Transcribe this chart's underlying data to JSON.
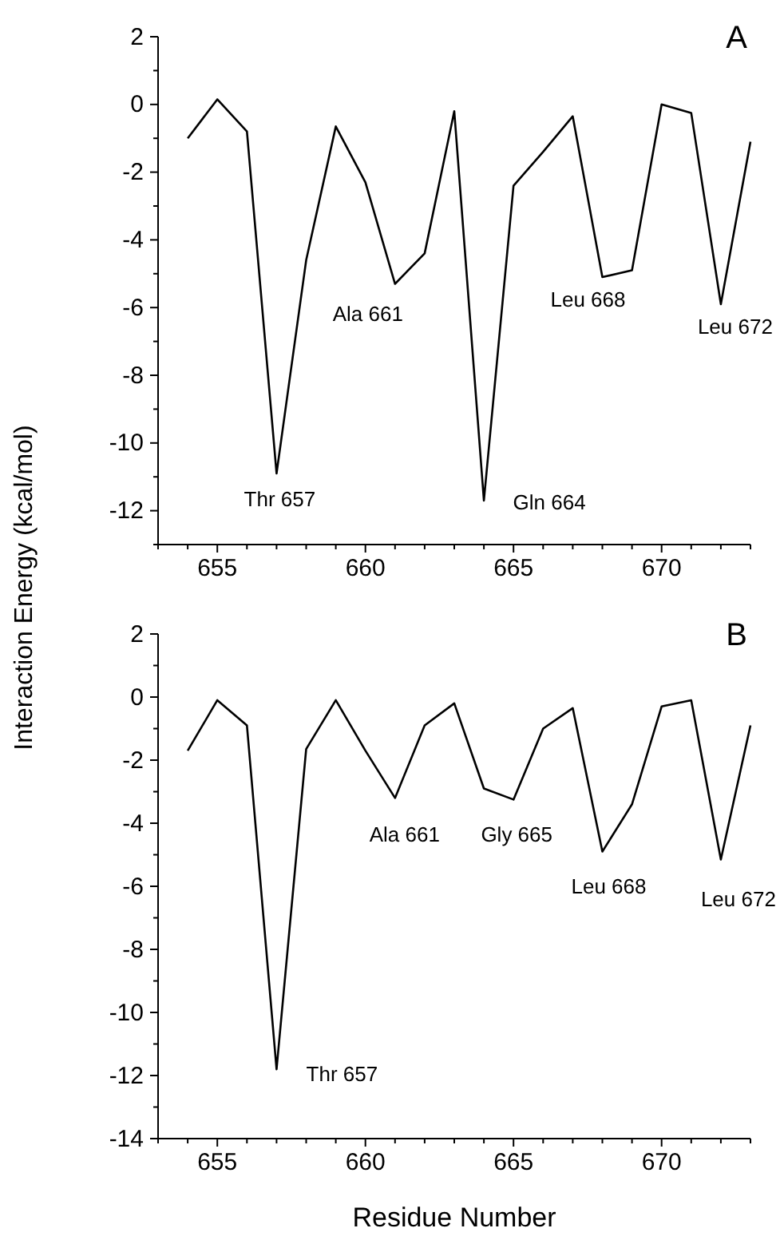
{
  "chart_data": [
    {
      "type": "line",
      "title": "A",
      "ylabel": "Interaction Energy (kcal/mol)",
      "x": [
        654,
        655,
        656,
        657,
        658,
        659,
        660,
        661,
        662,
        663,
        664,
        665,
        666,
        667,
        668,
        669,
        670,
        671,
        672,
        673
      ],
      "series": [
        {
          "color": "#000000",
          "values": [
            -1.0,
            0.15,
            -0.8,
            -10.9,
            -4.6,
            -0.65,
            -2.3,
            -5.3,
            -4.4,
            -0.2,
            -11.7,
            -2.4,
            -1.4,
            -0.35,
            -5.1,
            -4.9,
            0.0,
            -0.25,
            -5.9,
            -1.1
          ]
        }
      ],
      "xlim": [
        653,
        673
      ],
      "ylim": [
        -13,
        2
      ],
      "xticks": [
        {
          "value": 653,
          "label": null
        },
        {
          "value": 654,
          "label": null
        },
        655,
        {
          "value": 656,
          "label": null
        },
        {
          "value": 657,
          "label": null
        },
        {
          "value": 658,
          "label": null
        },
        {
          "value": 659,
          "label": null
        },
        660,
        {
          "value": 661,
          "label": null
        },
        {
          "value": 662,
          "label": null
        },
        {
          "value": 663,
          "label": null
        },
        {
          "value": 664,
          "label": null
        },
        665,
        {
          "value": 666,
          "label": null
        },
        {
          "value": 667,
          "label": null
        },
        {
          "value": 668,
          "label": null
        },
        {
          "value": 669,
          "label": null
        },
        670,
        {
          "value": 671,
          "label": null
        },
        {
          "value": 672,
          "label": null
        },
        {
          "value": 673,
          "label": null
        }
      ],
      "yticks": [
        {
          "value": -13,
          "label": null
        },
        -12,
        {
          "value": -11,
          "label": null
        },
        -10,
        {
          "value": -9,
          "label": null
        },
        -8,
        {
          "value": -7,
          "label": null
        },
        -6,
        {
          "value": -5,
          "label": null
        },
        -4,
        {
          "value": -3,
          "label": null
        },
        -2,
        {
          "value": -1,
          "label": null
        },
        0,
        {
          "value": 1,
          "label": null
        },
        2
      ],
      "marker": "none",
      "line_style": "solid",
      "grid": false,
      "annotations": [
        {
          "text": "Thr 657",
          "x": 657,
          "y": -10.9
        },
        {
          "text": "Ala 661",
          "x": 661,
          "y": -5.3
        },
        {
          "text": "Gln 664",
          "x": 664,
          "y": -11.7
        },
        {
          "text": "Leu 668",
          "x": 668,
          "y": -5.1
        },
        {
          "text": "Leu 672",
          "x": 672,
          "y": -5.9
        }
      ]
    },
    {
      "type": "line",
      "title": "B",
      "xlabel": "Residue Number",
      "x": [
        654,
        655,
        656,
        657,
        658,
        659,
        660,
        661,
        662,
        663,
        664,
        665,
        666,
        667,
        668,
        669,
        670,
        671,
        672,
        673
      ],
      "series": [
        {
          "color": "#000000",
          "values": [
            -1.7,
            -0.1,
            -0.9,
            -11.8,
            -1.65,
            -0.1,
            -1.7,
            -3.2,
            -0.9,
            -0.2,
            -2.9,
            -3.25,
            -1.0,
            -0.35,
            -4.9,
            -3.4,
            -0.3,
            -0.1,
            -5.15,
            -0.9
          ]
        }
      ],
      "xlim": [
        653,
        673
      ],
      "ylim": [
        -14,
        2
      ],
      "xticks": [
        {
          "value": 653,
          "label": null
        },
        {
          "value": 654,
          "label": null
        },
        655,
        {
          "value": 656,
          "label": null
        },
        {
          "value": 657,
          "label": null
        },
        {
          "value": 658,
          "label": null
        },
        {
          "value": 659,
          "label": null
        },
        660,
        {
          "value": 661,
          "label": null
        },
        {
          "value": 662,
          "label": null
        },
        {
          "value": 663,
          "label": null
        },
        {
          "value": 664,
          "label": null
        },
        665,
        {
          "value": 666,
          "label": null
        },
        {
          "value": 667,
          "label": null
        },
        {
          "value": 668,
          "label": null
        },
        {
          "value": 669,
          "label": null
        },
        670,
        {
          "value": 671,
          "label": null
        },
        {
          "value": 672,
          "label": null
        },
        {
          "value": 673,
          "label": null
        }
      ],
      "yticks": [
        -14,
        {
          "value": -13,
          "label": null
        },
        -12,
        {
          "value": -11,
          "label": null
        },
        -10,
        {
          "value": -9,
          "label": null
        },
        -8,
        {
          "value": -7,
          "label": null
        },
        -6,
        {
          "value": -5,
          "label": null
        },
        -4,
        {
          "value": -3,
          "label": null
        },
        -2,
        {
          "value": -1,
          "label": null
        },
        0,
        {
          "value": 1,
          "label": null
        },
        2
      ],
      "marker": "none",
      "line_style": "solid",
      "grid": false,
      "annotations": [
        {
          "text": "Thr 657",
          "x": 657,
          "y": -11.8
        },
        {
          "text": "Ala 661",
          "x": 661,
          "y": -3.2
        },
        {
          "text": "Gly 665",
          "x": 665,
          "y": -3.25
        },
        {
          "text": "Leu 668",
          "x": 668,
          "y": -4.9
        },
        {
          "text": "Leu 672",
          "x": 672,
          "y": -5.15
        }
      ]
    }
  ]
}
